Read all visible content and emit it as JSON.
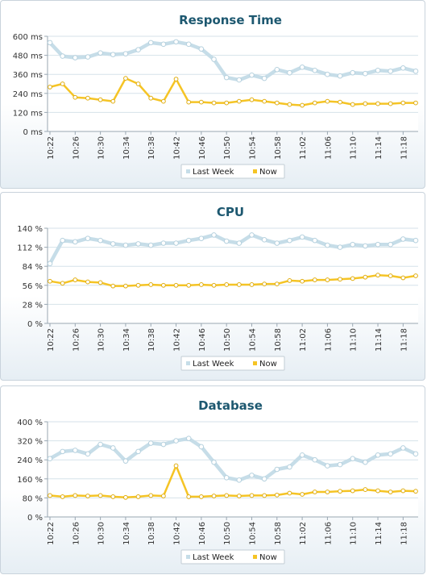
{
  "chart_data": [
    {
      "type": "line",
      "title": "Response Time",
      "unit": "ms",
      "ylim": [
        0,
        600
      ],
      "yticks": [
        "600 ms",
        "480 ms",
        "360 ms",
        "240 ms",
        "120 ms",
        "0 ms"
      ],
      "x": [
        "10:22",
        "10:24",
        "10:26",
        "10:28",
        "10:30",
        "10:32",
        "10:34",
        "10:36",
        "10:38",
        "10:40",
        "10:42",
        "10:44",
        "10:46",
        "10:48",
        "10:50",
        "10:52",
        "10:54",
        "10:56",
        "10:58",
        "11:00",
        "11:02",
        "11:04",
        "11:06",
        "11:08",
        "11:10",
        "11:12",
        "11:14",
        "11:16",
        "11:18",
        "11:20"
      ],
      "xtick_labels": [
        "10:22",
        "10:26",
        "10:30",
        "10:34",
        "10:38",
        "10:42",
        "10:46",
        "10:50",
        "10:54",
        "10:58",
        "11:02",
        "11:06",
        "11:10",
        "11:14",
        "11:18"
      ],
      "grid": true,
      "legend_position": "bottom",
      "series": [
        {
          "name": "Last Week",
          "color": "#c6dde8",
          "values": [
            560,
            475,
            465,
            470,
            495,
            485,
            490,
            515,
            560,
            550,
            565,
            550,
            520,
            455,
            340,
            325,
            355,
            335,
            390,
            370,
            405,
            385,
            360,
            350,
            370,
            365,
            385,
            380,
            400,
            380
          ]
        },
        {
          "name": "Now",
          "color": "#f5c425",
          "values": [
            280,
            300,
            215,
            210,
            200,
            190,
            335,
            300,
            210,
            190,
            330,
            185,
            185,
            180,
            180,
            190,
            200,
            190,
            180,
            170,
            165,
            180,
            190,
            185,
            170,
            175,
            175,
            175,
            180,
            180
          ]
        }
      ]
    },
    {
      "type": "line",
      "title": "CPU",
      "unit": "%",
      "ylim": [
        0,
        140
      ],
      "yticks": [
        "140 %",
        "112 %",
        "84 %",
        "56 %",
        "28 %",
        "0 %"
      ],
      "x": [
        "10:22",
        "10:24",
        "10:26",
        "10:28",
        "10:30",
        "10:32",
        "10:34",
        "10:36",
        "10:38",
        "10:40",
        "10:42",
        "10:44",
        "10:46",
        "10:48",
        "10:50",
        "10:52",
        "10:54",
        "10:56",
        "10:58",
        "11:00",
        "11:02",
        "11:04",
        "11:06",
        "11:08",
        "11:10",
        "11:12",
        "11:14",
        "11:16",
        "11:18",
        "11:20"
      ],
      "xtick_labels": [
        "10:22",
        "10:26",
        "10:30",
        "10:34",
        "10:38",
        "10:42",
        "10:46",
        "10:50",
        "10:54",
        "10:58",
        "11:02",
        "11:06",
        "11:10",
        "11:14",
        "11:18"
      ],
      "grid": true,
      "legend_position": "bottom",
      "series": [
        {
          "name": "Last Week",
          "color": "#c6dde8",
          "values": [
            88,
            122,
            120,
            125,
            122,
            117,
            115,
            117,
            115,
            118,
            118,
            122,
            125,
            130,
            121,
            118,
            130,
            123,
            118,
            122,
            127,
            122,
            115,
            112,
            116,
            114,
            116,
            116,
            124,
            122
          ]
        },
        {
          "name": "Now",
          "color": "#f5c425",
          "values": [
            62,
            59,
            64,
            61,
            60,
            55,
            55,
            56,
            57,
            56,
            56,
            56,
            57,
            56,
            57,
            57,
            57,
            58,
            58,
            63,
            62,
            64,
            64,
            65,
            66,
            68,
            71,
            70,
            67,
            70
          ]
        }
      ]
    },
    {
      "type": "line",
      "title": "Database",
      "unit": "%",
      "ylim": [
        0,
        400
      ],
      "yticks": [
        "400 %",
        "320 %",
        "240 %",
        "160 %",
        "80 %",
        "0 %"
      ],
      "x": [
        "10:22",
        "10:24",
        "10:26",
        "10:28",
        "10:30",
        "10:32",
        "10:34",
        "10:36",
        "10:38",
        "10:40",
        "10:42",
        "10:44",
        "10:46",
        "10:48",
        "10:50",
        "10:52",
        "10:54",
        "10:56",
        "10:58",
        "11:00",
        "11:02",
        "11:04",
        "11:06",
        "11:08",
        "11:10",
        "11:12",
        "11:14",
        "11:16",
        "11:18",
        "11:20"
      ],
      "xtick_labels": [
        "10:22",
        "10:26",
        "10:30",
        "10:34",
        "10:38",
        "10:42",
        "10:46",
        "10:50",
        "10:54",
        "10:58",
        "11:02",
        "11:06",
        "11:10",
        "11:14",
        "11:18"
      ],
      "grid": true,
      "legend_position": "bottom",
      "series": [
        {
          "name": "Last Week",
          "color": "#c6dde8",
          "values": [
            245,
            275,
            280,
            265,
            305,
            290,
            235,
            275,
            310,
            305,
            320,
            330,
            295,
            230,
            165,
            155,
            175,
            160,
            200,
            210,
            260,
            240,
            215,
            220,
            245,
            230,
            260,
            265,
            290,
            265
          ]
        },
        {
          "name": "Now",
          "color": "#f5c425",
          "values": [
            90,
            85,
            90,
            88,
            90,
            85,
            82,
            85,
            90,
            88,
            215,
            85,
            85,
            88,
            90,
            88,
            90,
            90,
            92,
            100,
            95,
            105,
            105,
            108,
            110,
            115,
            110,
            105,
            110,
            108
          ]
        }
      ]
    }
  ]
}
